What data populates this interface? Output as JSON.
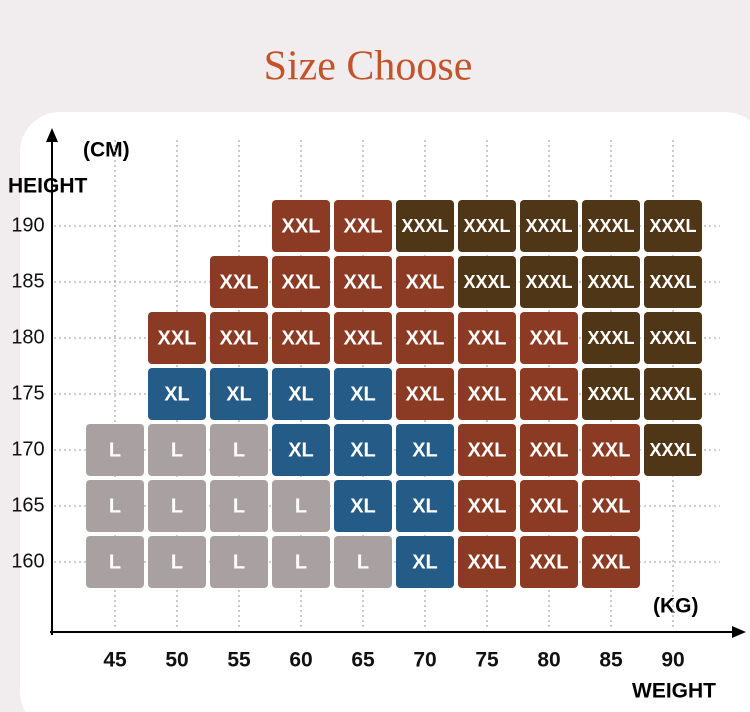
{
  "title": "Size Choose",
  "y_axis": {
    "unit": "(CM)",
    "label": "HEIGHT",
    "ticks": [
      "190",
      "185",
      "180",
      "175",
      "170",
      "165",
      "160"
    ]
  },
  "x_axis": {
    "unit": "(KG)",
    "label": "WEIGHT",
    "ticks": [
      "45",
      "50",
      "55",
      "60",
      "65",
      "70",
      "75",
      "80",
      "85",
      "90"
    ]
  },
  "colors": {
    "L": "#a9a1a1",
    "XL": "#245b87",
    "XXL": "#8b3b23",
    "XXXL": "#4f3616"
  },
  "grid": [
    [
      null,
      null,
      null,
      "XXL",
      "XXL",
      "XXXL",
      "XXXL",
      "XXXL",
      "XXXL",
      "XXXL"
    ],
    [
      null,
      null,
      "XXL",
      "XXL",
      "XXL",
      "XXL",
      "XXXL",
      "XXXL",
      "XXXL",
      "XXXL"
    ],
    [
      null,
      "XXL",
      "XXL",
      "XXL",
      "XXL",
      "XXL",
      "XXL",
      "XXL",
      "XXXL",
      "XXXL"
    ],
    [
      null,
      "XL",
      "XL",
      "XL",
      "XL",
      "XXL",
      "XXL",
      "XXL",
      "XXXL",
      "XXXL"
    ],
    [
      "L",
      "L",
      "L",
      "XL",
      "XL",
      "XL",
      "XXL",
      "XXL",
      "XXL",
      "XXXL"
    ],
    [
      "L",
      "L",
      "L",
      "L",
      "XL",
      "XL",
      "XXL",
      "XXL",
      "XXL",
      null
    ],
    [
      "L",
      "L",
      "L",
      "L",
      "L",
      "XL",
      "XXL",
      "XXL",
      "XXL",
      null
    ]
  ]
}
